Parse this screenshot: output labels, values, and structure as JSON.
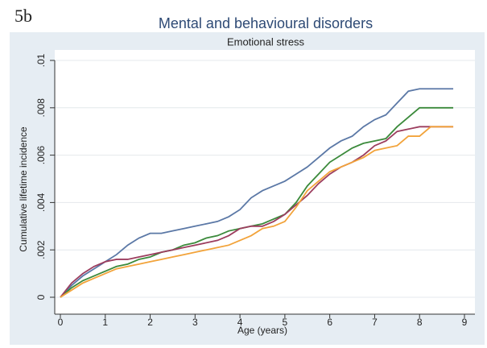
{
  "label": "5b",
  "chart_data": {
    "type": "line",
    "title": "Mental and behavioural disorders",
    "subtitle": "Emotional stress",
    "x_label": "Age (years)",
    "y_label": "Cumulative lifetime incidence",
    "x": [
      0,
      0.25,
      0.5,
      0.75,
      1,
      1.25,
      1.5,
      1.75,
      2,
      2.25,
      2.5,
      2.75,
      3,
      3.25,
      3.5,
      3.75,
      4,
      4.25,
      4.5,
      4.75,
      5,
      5.25,
      5.5,
      5.75,
      6,
      6.25,
      6.5,
      6.75,
      7,
      7.25,
      7.5,
      7.75,
      8,
      8.25,
      8.5,
      8.75
    ],
    "series": [
      {
        "color": "#5b78a6",
        "values": [
          0,
          0.0005,
          0.0009,
          0.0012,
          0.0015,
          0.0018,
          0.0022,
          0.0025,
          0.0027,
          0.0027,
          0.0028,
          0.0029,
          0.003,
          0.0031,
          0.0032,
          0.0034,
          0.0037,
          0.0042,
          0.0045,
          0.0047,
          0.0049,
          0.0052,
          0.0055,
          0.0059,
          0.0063,
          0.0066,
          0.0068,
          0.0072,
          0.0075,
          0.0077,
          0.0082,
          0.0087,
          0.0088,
          0.0088,
          0.0088,
          0.0088
        ]
      },
      {
        "color": "#3b8a3b",
        "values": [
          0,
          0.0004,
          0.0007,
          0.0009,
          0.0011,
          0.0013,
          0.0014,
          0.0016,
          0.0017,
          0.0019,
          0.002,
          0.0022,
          0.0023,
          0.0025,
          0.0026,
          0.0028,
          0.0029,
          0.003,
          0.0031,
          0.0033,
          0.0035,
          0.004,
          0.0047,
          0.0052,
          0.0057,
          0.006,
          0.0063,
          0.0065,
          0.0066,
          0.0067,
          0.0072,
          0.0076,
          0.008,
          0.008,
          0.008,
          0.008
        ]
      },
      {
        "color": "#9c3d5e",
        "values": [
          0,
          0.0006,
          0.001,
          0.0013,
          0.0015,
          0.0016,
          0.0016,
          0.0017,
          0.0018,
          0.0019,
          0.002,
          0.0021,
          0.0022,
          0.0023,
          0.0024,
          0.0026,
          0.0029,
          0.003,
          0.003,
          0.0032,
          0.0035,
          0.0039,
          0.0043,
          0.0048,
          0.0052,
          0.0055,
          0.0057,
          0.006,
          0.0064,
          0.0066,
          0.007,
          0.0071,
          0.0072,
          0.0072,
          0.0072,
          0.0072
        ]
      },
      {
        "color": "#f2a33a",
        "values": [
          0,
          0.0003,
          0.0006,
          0.0008,
          0.001,
          0.0012,
          0.0013,
          0.0014,
          0.0015,
          0.0016,
          0.0017,
          0.0018,
          0.0019,
          0.002,
          0.0021,
          0.0022,
          0.0024,
          0.0026,
          0.0029,
          0.003,
          0.0032,
          0.0038,
          0.0045,
          0.0049,
          0.0053,
          0.0055,
          0.0057,
          0.0059,
          0.0062,
          0.0063,
          0.0064,
          0.0068,
          0.0068,
          0.0072,
          0.0072,
          0.0072
        ]
      }
    ],
    "xlim": [
      0,
      9
    ],
    "xticks": [
      0,
      1,
      2,
      3,
      4,
      5,
      6,
      7,
      8,
      9
    ],
    "ylim": [
      0,
      0.01
    ],
    "yticks": [
      0,
      {
        "value": 0.002,
        "label": ".002"
      },
      {
        "value": 0.004,
        "label": ".004"
      },
      {
        "value": 0.006,
        "label": ".006"
      },
      {
        "value": 0.008,
        "label": ".008"
      },
      {
        "value": 0.01,
        "label": ".01"
      }
    ],
    "grid": true
  }
}
